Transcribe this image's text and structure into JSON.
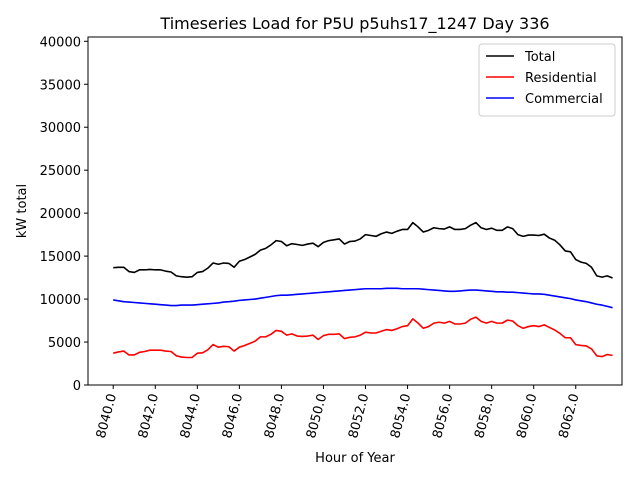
{
  "chart_data": {
    "type": "line",
    "title": "Timeseries Load for P5U p5uhs17_1247  Day 336",
    "xlabel": "Hour of Year",
    "ylabel": "kW total",
    "xlim": [
      8038.8,
      8064.2
    ],
    "ylim": [
      0,
      40500
    ],
    "xticks": [
      8040,
      8042,
      8044,
      8046,
      8048,
      8050,
      8052,
      8054,
      8056,
      8058,
      8060,
      8062
    ],
    "xtick_labels": [
      "8040.0",
      "8042.0",
      "8044.0",
      "8046.0",
      "8048.0",
      "8050.0",
      "8052.0",
      "8054.0",
      "8056.0",
      "8058.0",
      "8060.0",
      "8062.0"
    ],
    "yticks": [
      0,
      5000,
      10000,
      15000,
      20000,
      25000,
      30000,
      35000,
      40000
    ],
    "ytick_labels": [
      "0",
      "5000",
      "10000",
      "15000",
      "20000",
      "25000",
      "30000",
      "35000",
      "40000"
    ],
    "legend_position": "top-right",
    "x_start": 8040,
    "x_step": 0.25,
    "series": [
      {
        "name": "Total",
        "color": "#000000",
        "values": [
          13650,
          13700,
          13700,
          13200,
          13100,
          13400,
          13400,
          13450,
          13400,
          13400,
          13250,
          13150,
          12700,
          12600,
          12550,
          12600,
          13100,
          13200,
          13600,
          14200,
          14050,
          14200,
          14150,
          13700,
          14400,
          14600,
          14900,
          15200,
          15700,
          15900,
          16300,
          16800,
          16700,
          16200,
          16450,
          16350,
          16250,
          16400,
          16500,
          16100,
          16600,
          16800,
          16900,
          17000,
          16400,
          16700,
          16750,
          17000,
          17500,
          17400,
          17300,
          17600,
          17800,
          17650,
          17900,
          18100,
          18100,
          18900,
          18400,
          17800,
          18000,
          18300,
          18200,
          18150,
          18400,
          18100,
          18100,
          18200,
          18600,
          18900,
          18300,
          18100,
          18250,
          18000,
          18000,
          18400,
          18200,
          17500,
          17300,
          17450,
          17450,
          17400,
          17550,
          17100,
          16850,
          16300,
          15600,
          15500,
          14600,
          14300,
          14150,
          13700,
          12700,
          12550,
          12700,
          12450
        ]
      },
      {
        "name": "Residential",
        "color": "#ff0000",
        "values": [
          3700,
          3850,
          3950,
          3500,
          3500,
          3800,
          3900,
          4050,
          4050,
          4050,
          3950,
          3900,
          3400,
          3250,
          3200,
          3200,
          3700,
          3750,
          4100,
          4700,
          4400,
          4500,
          4450,
          3950,
          4400,
          4600,
          4850,
          5100,
          5600,
          5600,
          5900,
          6350,
          6250,
          5800,
          5950,
          5700,
          5650,
          5700,
          5800,
          5300,
          5750,
          5900,
          5900,
          5950,
          5400,
          5550,
          5600,
          5800,
          6150,
          6050,
          6050,
          6250,
          6450,
          6350,
          6550,
          6800,
          6900,
          7700,
          7200,
          6600,
          6800,
          7200,
          7300,
          7200,
          7400,
          7100,
          7100,
          7200,
          7650,
          7900,
          7400,
          7200,
          7400,
          7200,
          7200,
          7550,
          7450,
          6900,
          6600,
          6800,
          6900,
          6800,
          7000,
          6700,
          6400,
          6000,
          5500,
          5500,
          4700,
          4600,
          4550,
          4200,
          3400,
          3300,
          3550,
          3450
        ]
      },
      {
        "name": "Commercial",
        "color": "#0000ff",
        "values": [
          9900,
          9800,
          9700,
          9650,
          9600,
          9550,
          9500,
          9450,
          9400,
          9350,
          9300,
          9250,
          9250,
          9300,
          9300,
          9300,
          9350,
          9400,
          9450,
          9500,
          9550,
          9650,
          9700,
          9750,
          9850,
          9900,
          9950,
          10000,
          10100,
          10200,
          10300,
          10400,
          10450,
          10450,
          10500,
          10550,
          10600,
          10650,
          10700,
          10750,
          10800,
          10850,
          10900,
          10950,
          11000,
          11050,
          11100,
          11150,
          11200,
          11200,
          11200,
          11200,
          11250,
          11250,
          11250,
          11200,
          11200,
          11200,
          11200,
          11150,
          11100,
          11050,
          11000,
          10950,
          10900,
          10900,
          10950,
          11000,
          11050,
          11050,
          11000,
          10950,
          10900,
          10850,
          10850,
          10800,
          10800,
          10750,
          10700,
          10650,
          10600,
          10600,
          10550,
          10450,
          10350,
          10250,
          10150,
          10050,
          9900,
          9800,
          9700,
          9550,
          9400,
          9300,
          9150,
          9000
        ]
      }
    ]
  }
}
